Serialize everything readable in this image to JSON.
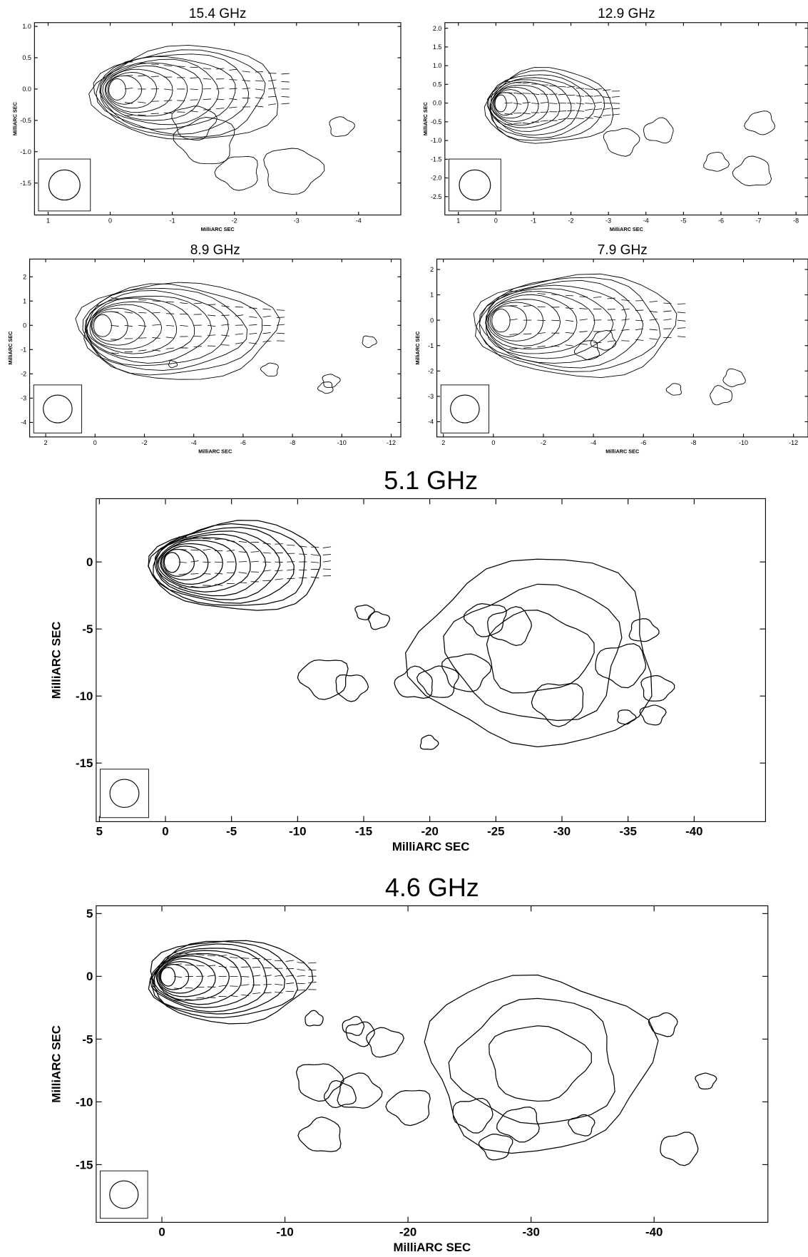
{
  "chart_data": [
    {
      "type": "contour",
      "title": "15.4 GHz",
      "xlabel": "MilliARC SEC",
      "ylabel": "MilliARC SEC",
      "xlim": [
        1.22,
        -4.68
      ],
      "ylim": [
        -2.01,
        1.06
      ],
      "xticks": [
        1,
        0,
        -1,
        -2,
        -3,
        -4
      ],
      "yticks": [
        {
          "value": 1,
          "label": "1.0"
        },
        0.5,
        {
          "value": 0,
          "label": "0.0"
        },
        -0.5,
        {
          "value": -1,
          "label": "-1.0"
        },
        -1.5
      ]
    },
    {
      "type": "contour",
      "title": "12.9 GHz",
      "xlabel": "MilliARC SEC",
      "ylabel": "MilliARC SEC",
      "xlim": [
        1.36,
        -8.32
      ],
      "ylim": [
        -2.99,
        2.15
      ],
      "xticks": [
        1,
        0,
        -1,
        -2,
        -3,
        -4,
        -5,
        -6,
        -7,
        -8
      ],
      "yticks": [
        {
          "value": 2,
          "label": "2.0"
        },
        1.5,
        {
          "value": 1,
          "label": "1.0"
        },
        0.5,
        {
          "value": 0,
          "label": "0.0"
        },
        -0.5,
        {
          "value": -1,
          "label": "-1.0"
        },
        -1.5,
        {
          "value": -2,
          "label": "-2.0"
        },
        -2.5
      ]
    },
    {
      "type": "contour",
      "title": "8.9 GHz",
      "xlabel": "MilliARC SEC",
      "ylabel": "MilliARC SEC",
      "xlim": [
        2.65,
        -12.39
      ],
      "ylim": [
        -4.6,
        2.73
      ],
      "xticks": [
        2,
        0,
        -2,
        -4,
        -6,
        -8,
        -10,
        -12
      ],
      "yticks": [
        2,
        1,
        0,
        -1,
        -2,
        -3,
        -4
      ]
    },
    {
      "type": "contour",
      "title": "7.9 GHz",
      "xlabel": "MilliARC SEC",
      "ylabel": "MilliARC SEC",
      "xlim": [
        2.26,
        -12.58
      ],
      "ylim": [
        -4.6,
        2.41
      ],
      "xticks": [
        2,
        0,
        -2,
        -4,
        -6,
        -8,
        -10,
        -12
      ],
      "yticks": [
        2,
        1,
        0,
        -1,
        -2,
        -3,
        -4
      ]
    },
    {
      "type": "contour",
      "title": "5.1 GHz",
      "xlabel": "MilliARC SEC",
      "ylabel": "MilliARC SEC",
      "xlim": [
        5.24,
        -45.4
      ],
      "ylim": [
        -19.37,
        4.72
      ],
      "xticks": [
        5,
        0,
        -5,
        -10,
        -15,
        -20,
        -25,
        -30,
        -35,
        -40
      ],
      "yticks": [
        0,
        -5,
        -10,
        -15
      ]
    },
    {
      "type": "contour",
      "title": "4.6 GHz",
      "xlabel": "MilliARC SEC",
      "ylabel": "MilliARC SEC",
      "xlim": [
        5.34,
        -49.25
      ],
      "ylim": [
        -19.6,
        5.62
      ],
      "xticks": [
        0,
        -10,
        -20,
        -30,
        -40
      ],
      "yticks": [
        5,
        0,
        -5,
        -10,
        -15
      ]
    }
  ]
}
